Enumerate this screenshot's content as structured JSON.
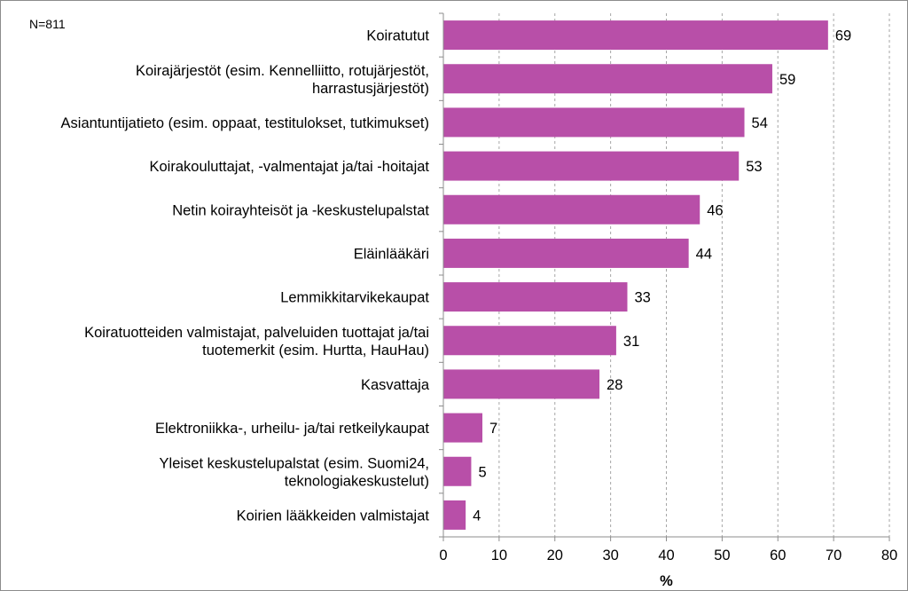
{
  "note": "N=811",
  "chart_data": {
    "type": "bar",
    "orientation": "horizontal",
    "categories": [
      [
        "Koiratutut"
      ],
      [
        "Koirajärjestöt (esim. Kennelliitto, rotujärjestöt,",
        "harrastusjärjestöt)"
      ],
      [
        "Asiantuntijatieto (esim. oppaat, testitulokset, tutkimukset)"
      ],
      [
        "Koirakouluttajat, -valmentajat ja/tai -hoitajat"
      ],
      [
        "Netin koirayhteisöt ja -keskustelupalstat"
      ],
      [
        "Eläinlääkäri"
      ],
      [
        "Lemmikkitarvikekaupat"
      ],
      [
        "Koiratuotteiden valmistajat, palveluiden tuottajat ja/tai",
        "tuotemerkit (esim. Hurtta, HauHau)"
      ],
      [
        "Kasvattaja"
      ],
      [
        "Elektroniikka-, urheilu- ja/tai retkeilykaupat"
      ],
      [
        "Yleiset keskustelupalstat (esim. Suomi24,",
        "teknologiakeskustelut)"
      ],
      [
        "Koirien lääkkeiden valmistajat"
      ]
    ],
    "values": [
      69,
      59,
      54,
      53,
      46,
      44,
      33,
      31,
      28,
      7,
      5,
      4
    ],
    "value_labels": [
      "69",
      "59",
      "54",
      "53",
      "46",
      "44",
      "33",
      "31",
      "28",
      "7",
      "5",
      "4"
    ],
    "xlabel": "%",
    "xlim": [
      0,
      80
    ],
    "xticks": [
      0,
      10,
      20,
      30,
      40,
      50,
      60,
      70,
      80
    ],
    "xtick_labels": [
      "0",
      "10",
      "20",
      "30",
      "40",
      "50",
      "60",
      "70",
      "80"
    ],
    "grid": "vertical dashed",
    "bar_color": "#B84FA8"
  }
}
